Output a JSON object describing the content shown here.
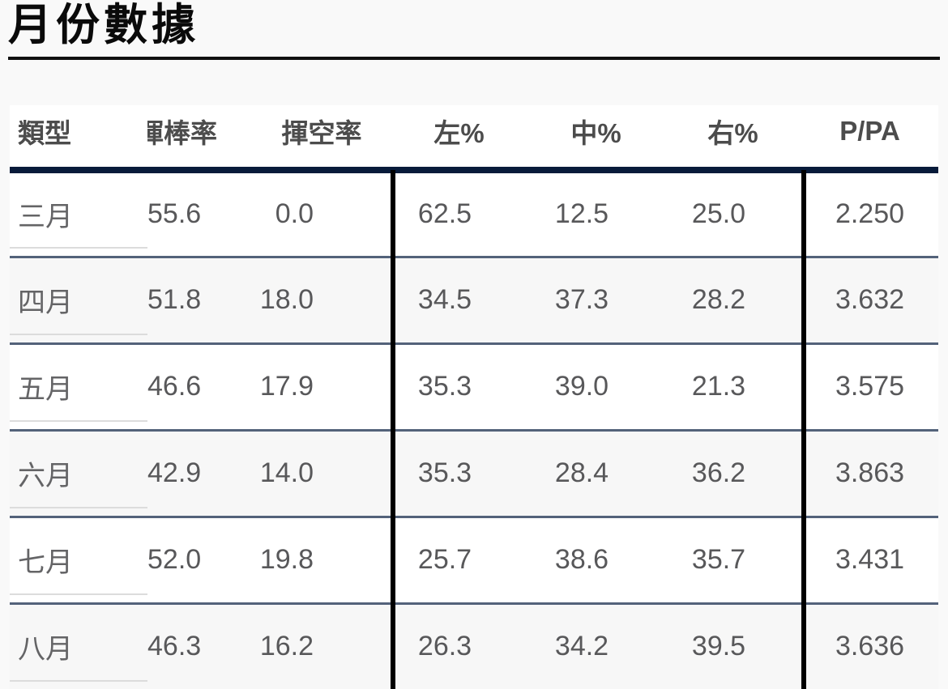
{
  "page": {
    "title": "月份數據"
  },
  "table": {
    "columns": [
      "類型",
      "揮棒率",
      "揮空率",
      "左%",
      "中%",
      "右%",
      "P/PA"
    ],
    "rows": [
      {
        "month": "三月",
        "values": [
          "55.6",
          "0.0",
          "62.5",
          "12.5",
          "25.0",
          "2.250"
        ]
      },
      {
        "month": "四月",
        "values": [
          "51.8",
          "18.0",
          "34.5",
          "37.3",
          "28.2",
          "3.632"
        ]
      },
      {
        "month": "五月",
        "values": [
          "46.6",
          "17.9",
          "35.3",
          "39.0",
          "21.3",
          "3.575"
        ]
      },
      {
        "month": "六月",
        "values": [
          "42.9",
          "14.0",
          "35.3",
          "28.4",
          "36.2",
          "3.863"
        ]
      },
      {
        "month": "七月",
        "values": [
          "52.0",
          "19.8",
          "25.7",
          "38.6",
          "35.7",
          "3.431"
        ]
      },
      {
        "month": "八月",
        "values": [
          "46.3",
          "16.2",
          "26.3",
          "34.2",
          "39.5",
          "3.636"
        ]
      }
    ]
  },
  "colors": {
    "page_bg": "#f9f9f9",
    "title_rule_black": "#111111",
    "header_rule_navy": "#081b3a",
    "column_divider_black": "#000000",
    "row_separator_blue_gray": "#53627a",
    "row_alt_bg": "#f7f7f7"
  }
}
